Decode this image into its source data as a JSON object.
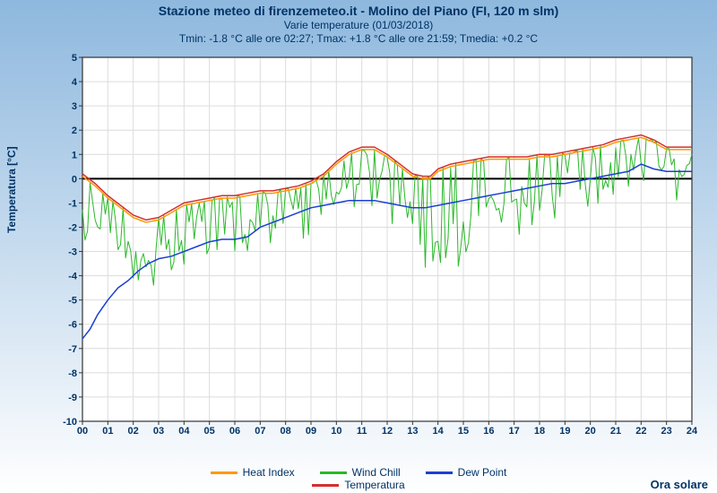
{
  "title_line1": "Stazione meteo di firenzemeteo.it - Molino del Piano (FI, 120 m slm)",
  "title_line2": "Varie temperature (01/03/2018)",
  "title_line3": "Tmin: -1.8 °C alle ore 02:27; Tmax: +1.8 °C alle ore 21:59; Tmedia: +0.2 °C",
  "ylabel": "Temperatura [°C]",
  "ora_solare": "Ora solare",
  "chart": {
    "type": "line",
    "background_top": "#8eb8de",
    "background_bottom": "#ffffff",
    "plot_bg": "#ffffff",
    "grid_color": "#dcdcdc",
    "border_color": "#333333",
    "zero_line_color": "#000000",
    "axis_text_color": "#003366",
    "axis_fontsize": 11,
    "xlim": [
      0,
      24
    ],
    "ylim": [
      -10,
      5
    ],
    "xtick_step": 1,
    "ytick_step": 1,
    "xticks_labels": [
      "00",
      "01",
      "02",
      "03",
      "04",
      "05",
      "06",
      "07",
      "08",
      "09",
      "10",
      "11",
      "12",
      "13",
      "14",
      "15",
      "16",
      "17",
      "18",
      "19",
      "20",
      "21",
      "22",
      "23",
      "24"
    ],
    "line_width": 1.5,
    "series": {
      "heat_index": {
        "label": "Heat Index",
        "color": "#ff9800",
        "points": [
          [
            0,
            0.1
          ],
          [
            0.5,
            -0.3
          ],
          [
            1,
            -0.8
          ],
          [
            1.5,
            -1.2
          ],
          [
            2,
            -1.6
          ],
          [
            2.5,
            -1.8
          ],
          [
            3,
            -1.7
          ],
          [
            3.5,
            -1.4
          ],
          [
            4,
            -1.1
          ],
          [
            4.5,
            -1.0
          ],
          [
            5,
            -0.9
          ],
          [
            5.5,
            -0.8
          ],
          [
            6,
            -0.8
          ],
          [
            6.5,
            -0.7
          ],
          [
            7,
            -0.6
          ],
          [
            7.5,
            -0.6
          ],
          [
            8,
            -0.5
          ],
          [
            8.5,
            -0.4
          ],
          [
            9,
            -0.2
          ],
          [
            9.5,
            0.1
          ],
          [
            10,
            0.6
          ],
          [
            10.5,
            1.0
          ],
          [
            11,
            1.2
          ],
          [
            11.5,
            1.2
          ],
          [
            12,
            0.9
          ],
          [
            12.5,
            0.5
          ],
          [
            13,
            0.1
          ],
          [
            13.4,
            0.0
          ],
          [
            13.7,
            0.0
          ],
          [
            14,
            0.3
          ],
          [
            14.5,
            0.5
          ],
          [
            15,
            0.6
          ],
          [
            15.5,
            0.7
          ],
          [
            16,
            0.8
          ],
          [
            16.5,
            0.8
          ],
          [
            17,
            0.8
          ],
          [
            17.5,
            0.8
          ],
          [
            18,
            0.9
          ],
          [
            18.5,
            0.9
          ],
          [
            19,
            1.0
          ],
          [
            19.5,
            1.1
          ],
          [
            20,
            1.2
          ],
          [
            20.5,
            1.3
          ],
          [
            21,
            1.5
          ],
          [
            21.5,
            1.6
          ],
          [
            22,
            1.7
          ],
          [
            22.5,
            1.5
          ],
          [
            23,
            1.2
          ],
          [
            23.5,
            1.2
          ],
          [
            24,
            1.2
          ]
        ]
      },
      "temperatura": {
        "label": "Temperatura",
        "color": "#d32f2f",
        "points": [
          [
            0,
            0.2
          ],
          [
            0.5,
            -0.2
          ],
          [
            1,
            -0.7
          ],
          [
            1.5,
            -1.1
          ],
          [
            2,
            -1.5
          ],
          [
            2.5,
            -1.7
          ],
          [
            3,
            -1.6
          ],
          [
            3.5,
            -1.3
          ],
          [
            4,
            -1.0
          ],
          [
            4.5,
            -0.9
          ],
          [
            5,
            -0.8
          ],
          [
            5.5,
            -0.7
          ],
          [
            6,
            -0.7
          ],
          [
            6.5,
            -0.6
          ],
          [
            7,
            -0.5
          ],
          [
            7.5,
            -0.5
          ],
          [
            8,
            -0.4
          ],
          [
            8.5,
            -0.3
          ],
          [
            9,
            -0.1
          ],
          [
            9.5,
            0.2
          ],
          [
            10,
            0.7
          ],
          [
            10.5,
            1.1
          ],
          [
            11,
            1.3
          ],
          [
            11.5,
            1.3
          ],
          [
            12,
            1.0
          ],
          [
            12.5,
            0.6
          ],
          [
            13,
            0.2
          ],
          [
            13.4,
            0.1
          ],
          [
            13.7,
            0.1
          ],
          [
            14,
            0.4
          ],
          [
            14.5,
            0.6
          ],
          [
            15,
            0.7
          ],
          [
            15.5,
            0.8
          ],
          [
            16,
            0.9
          ],
          [
            16.5,
            0.9
          ],
          [
            17,
            0.9
          ],
          [
            17.5,
            0.9
          ],
          [
            18,
            1.0
          ],
          [
            18.5,
            1.0
          ],
          [
            19,
            1.1
          ],
          [
            19.5,
            1.2
          ],
          [
            20,
            1.3
          ],
          [
            20.5,
            1.4
          ],
          [
            21,
            1.6
          ],
          [
            21.5,
            1.7
          ],
          [
            22,
            1.8
          ],
          [
            22.5,
            1.6
          ],
          [
            23,
            1.3
          ],
          [
            23.5,
            1.3
          ],
          [
            24,
            1.3
          ]
        ]
      },
      "dew_point": {
        "label": "Dew Point",
        "color": "#1a3fd4",
        "points": [
          [
            0,
            -6.6
          ],
          [
            0.3,
            -6.2
          ],
          [
            0.6,
            -5.6
          ],
          [
            1,
            -5.0
          ],
          [
            1.4,
            -4.5
          ],
          [
            1.8,
            -4.2
          ],
          [
            2.2,
            -3.8
          ],
          [
            2.6,
            -3.5
          ],
          [
            3,
            -3.3
          ],
          [
            3.5,
            -3.2
          ],
          [
            4,
            -3.0
          ],
          [
            4.5,
            -2.8
          ],
          [
            5,
            -2.6
          ],
          [
            5.5,
            -2.5
          ],
          [
            6,
            -2.5
          ],
          [
            6.5,
            -2.4
          ],
          [
            7,
            -2.0
          ],
          [
            7.5,
            -1.8
          ],
          [
            8,
            -1.6
          ],
          [
            8.5,
            -1.4
          ],
          [
            9,
            -1.2
          ],
          [
            9.5,
            -1.1
          ],
          [
            10,
            -1.0
          ],
          [
            10.5,
            -0.9
          ],
          [
            11,
            -0.9
          ],
          [
            11.5,
            -0.9
          ],
          [
            12,
            -1.0
          ],
          [
            12.5,
            -1.1
          ],
          [
            13,
            -1.2
          ],
          [
            13.5,
            -1.2
          ],
          [
            14,
            -1.1
          ],
          [
            14.5,
            -1.0
          ],
          [
            15,
            -0.9
          ],
          [
            15.5,
            -0.8
          ],
          [
            16,
            -0.7
          ],
          [
            16.5,
            -0.6
          ],
          [
            17,
            -0.5
          ],
          [
            17.5,
            -0.4
          ],
          [
            18,
            -0.3
          ],
          [
            18.5,
            -0.2
          ],
          [
            19,
            -0.2
          ],
          [
            19.5,
            -0.1
          ],
          [
            20,
            0.0
          ],
          [
            20.5,
            0.1
          ],
          [
            21,
            0.2
          ],
          [
            21.5,
            0.3
          ],
          [
            22,
            0.6
          ],
          [
            22.5,
            0.4
          ],
          [
            23,
            0.3
          ],
          [
            23.5,
            0.3
          ],
          [
            24,
            0.3
          ]
        ]
      },
      "wind_chill": {
        "label": "Wind Chill",
        "color": "#2bb82b",
        "noisy": true,
        "base_points": [
          [
            0,
            -0.8
          ],
          [
            0.5,
            -1.5
          ],
          [
            1,
            -2.0
          ],
          [
            1.5,
            -2.3
          ],
          [
            2,
            -2.7
          ],
          [
            2.5,
            -3.0
          ],
          [
            3,
            -2.8
          ],
          [
            3.5,
            -2.4
          ],
          [
            4,
            -2.0
          ],
          [
            4.5,
            -1.8
          ],
          [
            5,
            -1.7
          ],
          [
            5.5,
            -1.6
          ],
          [
            6,
            -1.6
          ],
          [
            6.5,
            -1.5
          ],
          [
            7,
            -1.4
          ],
          [
            7.5,
            -1.3
          ],
          [
            8,
            -1.2
          ],
          [
            8.5,
            -1.0
          ],
          [
            9,
            -0.7
          ],
          [
            9.5,
            -0.3
          ],
          [
            10,
            0.0
          ],
          [
            10.5,
            0.3
          ],
          [
            11,
            0.4
          ],
          [
            11.5,
            0.3
          ],
          [
            12,
            -0.2
          ],
          [
            12.5,
            -0.8
          ],
          [
            13,
            -1.5
          ],
          [
            13.5,
            -2.2
          ],
          [
            14,
            -2.5
          ],
          [
            14.5,
            -2.3
          ],
          [
            15,
            -2.0
          ],
          [
            15.5,
            -1.6
          ],
          [
            16,
            -1.2
          ],
          [
            16.5,
            -1.0
          ],
          [
            17,
            -0.8
          ],
          [
            17.5,
            -0.6
          ],
          [
            18,
            -0.4
          ],
          [
            18.5,
            -0.2
          ],
          [
            19,
            0.0
          ],
          [
            19.5,
            0.2
          ],
          [
            20,
            0.4
          ],
          [
            20.5,
            0.6
          ],
          [
            21,
            0.8
          ],
          [
            21.5,
            1.0
          ],
          [
            22,
            1.1
          ],
          [
            22.5,
            0.9
          ],
          [
            23,
            0.6
          ],
          [
            23.5,
            0.6
          ],
          [
            24,
            0.6
          ]
        ],
        "amplitude": 1.6,
        "density": 240
      }
    },
    "legend_order_row1": [
      "heat_index",
      "wind_chill",
      "dew_point"
    ],
    "legend_order_row2": [
      "temperatura"
    ]
  }
}
